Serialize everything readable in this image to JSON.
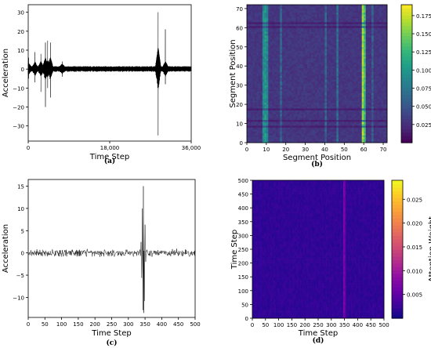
{
  "chart_data": [
    {
      "id": "a",
      "type": "line",
      "caption": "(a)",
      "xlabel": "Time Step",
      "ylabel": "Acceleration",
      "xlim": [
        0,
        36000
      ],
      "ylim": [
        -38,
        34
      ],
      "x_ticks": [
        0,
        18000,
        36000
      ],
      "x_tick_labels": [
        "0",
        "18,000",
        "36,000"
      ],
      "y_ticks": [
        -30,
        -20,
        -10,
        0,
        10,
        20,
        30
      ],
      "y_tick_labels": [
        "−30",
        "−20",
        "−10",
        "0",
        "10",
        "20",
        "30"
      ],
      "line_color": "#000000",
      "baseline_amplitude": 1.5,
      "events": [
        {
          "x": 100,
          "max": 6,
          "min": -5
        },
        {
          "x": 1500,
          "max": 9,
          "min": -7
        },
        {
          "x": 2800,
          "max": 8,
          "min": -12
        },
        {
          "x": 3800,
          "max": 14,
          "min": -20
        },
        {
          "x": 4300,
          "max": 15,
          "min": -10
        },
        {
          "x": 4900,
          "max": 14,
          "min": -15
        },
        {
          "x": 7500,
          "max": 4,
          "min": -4
        },
        {
          "x": 28700,
          "max": 30,
          "min": -35
        },
        {
          "x": 30300,
          "max": 21,
          "min": -8
        }
      ]
    },
    {
      "id": "b",
      "type": "heatmap",
      "caption": "(b)",
      "xlabel": "Segment Position",
      "ylabel": "Segment Position",
      "xlim": [
        0,
        72
      ],
      "ylim": [
        0,
        72
      ],
      "x_ticks": [
        0,
        10,
        20,
        30,
        40,
        50,
        60,
        70
      ],
      "y_ticks": [
        0,
        10,
        20,
        30,
        40,
        50,
        60,
        70
      ],
      "colormap": "viridis",
      "colorbar_label": "Attention Weight",
      "colorbar_range": [
        0.0,
        0.19
      ],
      "colorbar_ticks": [
        0.025,
        0.05,
        0.075,
        0.1,
        0.125,
        0.15,
        0.175
      ],
      "colorbar_tick_labels": [
        "0.025",
        "0.050",
        "0.075",
        "0.100",
        "0.125",
        "0.150",
        "0.175"
      ],
      "background_weight": 0.03,
      "high_columns": [
        {
          "col": 8,
          "weight": 0.09
        },
        {
          "col": 9,
          "weight": 0.1
        },
        {
          "col": 10,
          "weight": 0.085
        },
        {
          "col": 17,
          "weight": 0.06
        },
        {
          "col": 40,
          "weight": 0.06
        },
        {
          "col": 46,
          "weight": 0.07
        },
        {
          "col": 59,
          "weight": 0.16
        },
        {
          "col": 60,
          "weight": 0.13
        },
        {
          "col": 64,
          "weight": 0.055
        }
      ],
      "low_rows": [
        8,
        11,
        17,
        60,
        62
      ]
    },
    {
      "id": "c",
      "type": "line",
      "caption": "(c)",
      "xlabel": "Time Step",
      "ylabel": "Acceleration",
      "xlim": [
        0,
        500
      ],
      "ylim": [
        -14.5,
        16.5
      ],
      "x_ticks": [
        0,
        50,
        100,
        150,
        200,
        250,
        300,
        350,
        400,
        450,
        500
      ],
      "x_tick_labels": [
        "0",
        "50",
        "100",
        "150",
        "200",
        "250",
        "300",
        "350",
        "400",
        "450",
        "500"
      ],
      "y_ticks": [
        -10,
        -5,
        0,
        5,
        10,
        15
      ],
      "y_tick_labels": [
        "−10",
        "−5",
        "0",
        "5",
        "10",
        "15"
      ],
      "line_color": "#000000",
      "baseline_amplitude": 0.6,
      "event": {
        "center": 345,
        "start": 325,
        "end": 365,
        "peak": 15,
        "trough": -13.5
      }
    },
    {
      "id": "d",
      "type": "heatmap",
      "caption": "(d)",
      "xlabel": "Time Step",
      "ylabel": "Time Step",
      "xlim": [
        0,
        500
      ],
      "ylim": [
        0,
        500
      ],
      "x_ticks": [
        0,
        50,
        100,
        150,
        200,
        250,
        300,
        350,
        400,
        450,
        500
      ],
      "y_ticks": [
        0,
        50,
        100,
        150,
        200,
        250,
        300,
        350,
        400,
        450,
        500
      ],
      "colormap": "plasma",
      "colorbar_label": "Attention Weight",
      "colorbar_range": [
        0.0,
        0.029
      ],
      "colorbar_ticks": [
        0.005,
        0.01,
        0.015,
        0.02,
        0.025
      ],
      "colorbar_tick_labels": [
        "0.005",
        "0.010",
        "0.015",
        "0.020",
        "0.025"
      ],
      "background_weight": 0.002,
      "high_columns": [
        {
          "col": 345,
          "weight": 0.007
        },
        {
          "col": 350,
          "weight": 0.0055
        }
      ]
    }
  ]
}
